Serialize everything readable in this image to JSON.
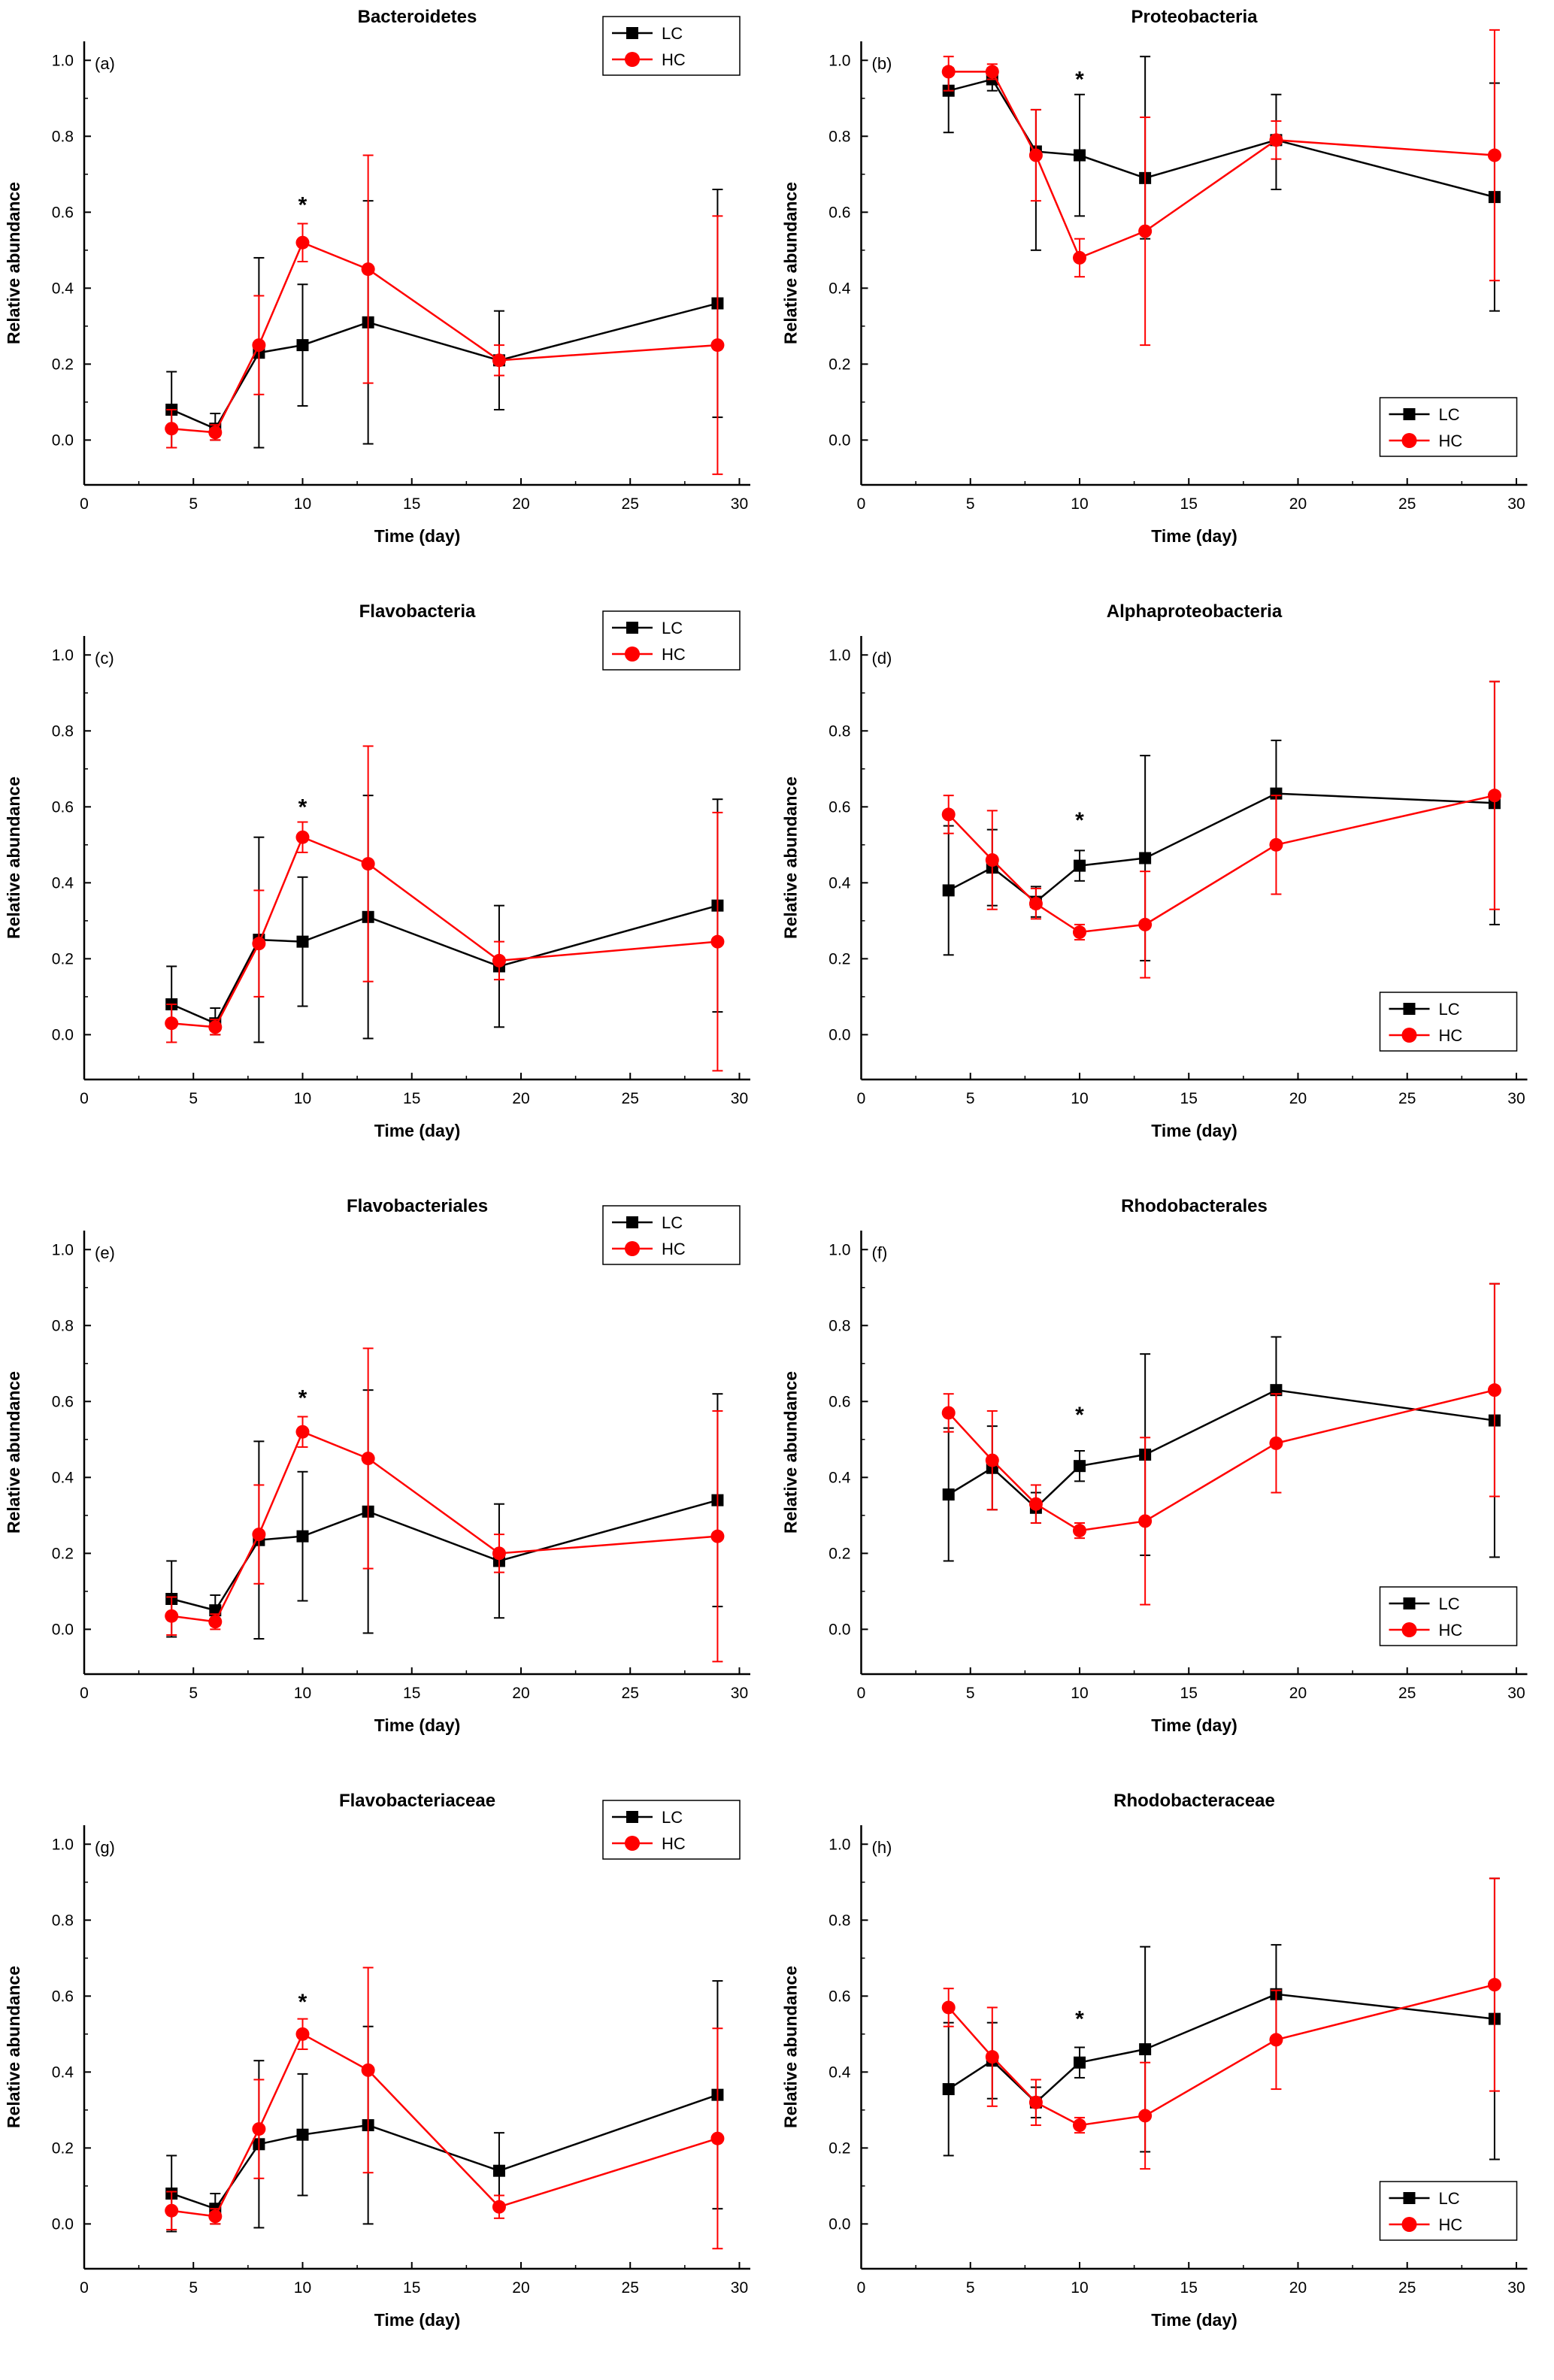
{
  "axes": {
    "xlabel": "Time (day)",
    "ylabel": "Relative abundance",
    "xticks": [
      0,
      5,
      10,
      15,
      20,
      25,
      30
    ],
    "xtick_labels": [
      "0",
      "5",
      "10",
      "15",
      "20",
      "25",
      "30"
    ],
    "yticks": [
      0,
      0.2,
      0.4,
      0.6,
      0.8,
      1.0
    ],
    "ytick_labels": [
      "0.0",
      "0.2",
      "0.4",
      "0.6",
      "0.8",
      "1.0"
    ],
    "xlim": [
      0,
      30.5
    ],
    "ylim": [
      -0.118,
      1.05
    ],
    "x_minor": [
      2.5,
      7.5,
      12.5,
      17.5,
      22.5,
      27.5
    ],
    "y_minor": [
      0.1,
      0.3,
      0.5,
      0.7,
      0.9
    ]
  },
  "legend": {
    "entries": [
      "LC",
      "HC"
    ]
  },
  "colors": {
    "LC": "#000000",
    "HC": "#ff0000"
  },
  "x": [
    4,
    6,
    8,
    10,
    13,
    19,
    29
  ],
  "chart_data": [
    {
      "type": "line",
      "panel": "(a)",
      "title": "Bacteroidetes",
      "legend_pos": "top-right",
      "significance": {
        "x": 10,
        "y": 0.6,
        "symbol": "*"
      },
      "xlabel": "Time (day)",
      "ylabel": "Relative abundance",
      "series": [
        {
          "name": "LC",
          "color": "#000000",
          "marker": "square",
          "y": [
            0.08,
            0.03,
            0.23,
            0.25,
            0.31,
            0.21,
            0.36
          ],
          "err_lo": [
            0.1,
            0.03,
            0.25,
            0.16,
            0.32,
            0.13,
            0.3
          ],
          "err_hi": [
            0.1,
            0.04,
            0.25,
            0.16,
            0.32,
            0.13,
            0.3
          ]
        },
        {
          "name": "HC",
          "color": "#ff0000",
          "marker": "circle",
          "y": [
            0.03,
            0.02,
            0.25,
            0.52,
            0.45,
            0.21,
            0.25
          ],
          "err_lo": [
            0.05,
            0.02,
            0.13,
            0.05,
            0.3,
            0.04,
            0.34
          ],
          "err_hi": [
            0.05,
            0.02,
            0.13,
            0.05,
            0.3,
            0.04,
            0.34
          ]
        }
      ]
    },
    {
      "type": "line",
      "panel": "(b)",
      "title": "Proteobacteria",
      "legend_pos": "bottom-right",
      "significance": {
        "x": 10,
        "y": 0.93,
        "symbol": "*"
      },
      "xlabel": "Time (day)",
      "ylabel": "Relative abundance",
      "series": [
        {
          "name": "LC",
          "color": "#000000",
          "marker": "square",
          "y": [
            0.92,
            0.95,
            0.76,
            0.75,
            0.69,
            0.79,
            0.64
          ],
          "err_lo": [
            0.11,
            0.03,
            0.26,
            0.16,
            0.16,
            0.13,
            0.3
          ],
          "err_hi": [
            0.06,
            0.03,
            0.11,
            0.16,
            0.32,
            0.12,
            0.3
          ]
        },
        {
          "name": "HC",
          "color": "#ff0000",
          "marker": "circle",
          "y": [
            0.97,
            0.97,
            0.75,
            0.48,
            0.55,
            0.79,
            0.75
          ],
          "err_lo": [
            0.05,
            0.02,
            0.12,
            0.05,
            0.3,
            0.05,
            0.33
          ],
          "err_hi": [
            0.04,
            0.02,
            0.12,
            0.05,
            0.3,
            0.05,
            0.33
          ]
        }
      ]
    },
    {
      "type": "line",
      "panel": "(c)",
      "title": "Flavobacteria",
      "legend_pos": "top-right",
      "significance": {
        "x": 10,
        "y": 0.58,
        "symbol": "*"
      },
      "xlabel": "Time (day)",
      "ylabel": "Relative abundance",
      "series": [
        {
          "name": "LC",
          "color": "#000000",
          "marker": "square",
          "y": [
            0.08,
            0.03,
            0.25,
            0.245,
            0.31,
            0.18,
            0.34
          ],
          "err_lo": [
            0.1,
            0.03,
            0.27,
            0.17,
            0.32,
            0.16,
            0.28
          ],
          "err_hi": [
            0.1,
            0.04,
            0.27,
            0.17,
            0.32,
            0.16,
            0.28
          ]
        },
        {
          "name": "HC",
          "color": "#ff0000",
          "marker": "circle",
          "y": [
            0.03,
            0.02,
            0.24,
            0.52,
            0.45,
            0.195,
            0.245
          ],
          "err_lo": [
            0.05,
            0.02,
            0.14,
            0.04,
            0.31,
            0.05,
            0.34
          ],
          "err_hi": [
            0.05,
            0.02,
            0.14,
            0.04,
            0.31,
            0.05,
            0.34
          ]
        }
      ]
    },
    {
      "type": "line",
      "panel": "(d)",
      "title": "Alphaproteobacteria",
      "legend_pos": "bottom-right",
      "significance": {
        "x": 10,
        "y": 0.545,
        "symbol": "*"
      },
      "xlabel": "Time (day)",
      "ylabel": "Relative abundance",
      "series": [
        {
          "name": "LC",
          "color": "#000000",
          "marker": "square",
          "y": [
            0.38,
            0.44,
            0.35,
            0.445,
            0.465,
            0.635,
            0.61
          ],
          "err_lo": [
            0.17,
            0.1,
            0.04,
            0.04,
            0.27,
            0.14,
            0.32
          ],
          "err_hi": [
            0.17,
            0.1,
            0.04,
            0.04,
            0.27,
            0.14,
            0.32
          ]
        },
        {
          "name": "HC",
          "color": "#ff0000",
          "marker": "circle",
          "y": [
            0.58,
            0.46,
            0.345,
            0.27,
            0.29,
            0.5,
            0.63
          ],
          "err_lo": [
            0.05,
            0.13,
            0.04,
            0.02,
            0.14,
            0.13,
            0.3
          ],
          "err_hi": [
            0.05,
            0.13,
            0.04,
            0.02,
            0.14,
            0.13,
            0.3
          ]
        }
      ]
    },
    {
      "type": "line",
      "panel": "(e)",
      "title": "Flavobacteriales",
      "legend_pos": "top-right",
      "significance": {
        "x": 10,
        "y": 0.59,
        "symbol": "*"
      },
      "xlabel": "Time (day)",
      "ylabel": "Relative abundance",
      "series": [
        {
          "name": "LC",
          "color": "#000000",
          "marker": "square",
          "y": [
            0.08,
            0.05,
            0.235,
            0.245,
            0.31,
            0.18,
            0.34
          ],
          "err_lo": [
            0.1,
            0.04,
            0.26,
            0.17,
            0.32,
            0.15,
            0.28
          ],
          "err_hi": [
            0.1,
            0.04,
            0.26,
            0.17,
            0.32,
            0.15,
            0.28
          ]
        },
        {
          "name": "HC",
          "color": "#ff0000",
          "marker": "circle",
          "y": [
            0.035,
            0.02,
            0.25,
            0.52,
            0.45,
            0.2,
            0.245
          ],
          "err_lo": [
            0.05,
            0.02,
            0.13,
            0.04,
            0.29,
            0.05,
            0.33
          ],
          "err_hi": [
            0.05,
            0.02,
            0.13,
            0.04,
            0.29,
            0.05,
            0.33
          ]
        }
      ]
    },
    {
      "type": "line",
      "panel": "(f)",
      "title": "Rhodobacterales",
      "legend_pos": "bottom-right",
      "significance": {
        "x": 10,
        "y": 0.545,
        "symbol": "*"
      },
      "xlabel": "Time (day)",
      "ylabel": "Relative abundance",
      "series": [
        {
          "name": "LC",
          "color": "#000000",
          "marker": "square",
          "y": [
            0.355,
            0.425,
            0.32,
            0.43,
            0.46,
            0.63,
            0.55
          ],
          "err_lo": [
            0.175,
            0.11,
            0.04,
            0.04,
            0.265,
            0.14,
            0.36
          ],
          "err_hi": [
            0.175,
            0.11,
            0.04,
            0.04,
            0.265,
            0.14,
            0.36
          ]
        },
        {
          "name": "HC",
          "color": "#ff0000",
          "marker": "circle",
          "y": [
            0.57,
            0.445,
            0.33,
            0.26,
            0.285,
            0.49,
            0.63
          ],
          "err_lo": [
            0.05,
            0.13,
            0.05,
            0.02,
            0.22,
            0.13,
            0.28
          ],
          "err_hi": [
            0.05,
            0.13,
            0.05,
            0.02,
            0.22,
            0.13,
            0.28
          ]
        }
      ]
    },
    {
      "type": "line",
      "panel": "(g)",
      "title": "Flavobacteriaceae",
      "legend_pos": "top-right",
      "significance": {
        "x": 10,
        "y": 0.565,
        "symbol": "*"
      },
      "xlabel": "Time (day)",
      "ylabel": "Relative abundance",
      "series": [
        {
          "name": "LC",
          "color": "#000000",
          "marker": "square",
          "y": [
            0.08,
            0.04,
            0.21,
            0.235,
            0.26,
            0.14,
            0.34
          ],
          "err_lo": [
            0.1,
            0.04,
            0.22,
            0.16,
            0.26,
            0.1,
            0.3
          ],
          "err_hi": [
            0.1,
            0.04,
            0.22,
            0.16,
            0.26,
            0.1,
            0.3
          ]
        },
        {
          "name": "HC",
          "color": "#ff0000",
          "marker": "circle",
          "y": [
            0.035,
            0.02,
            0.25,
            0.5,
            0.405,
            0.045,
            0.225
          ],
          "err_lo": [
            0.05,
            0.02,
            0.13,
            0.04,
            0.27,
            0.03,
            0.29
          ],
          "err_hi": [
            0.05,
            0.02,
            0.13,
            0.04,
            0.27,
            0.03,
            0.29
          ]
        }
      ]
    },
    {
      "type": "line",
      "panel": "(h)",
      "title": "Rhodobacteraceae",
      "legend_pos": "bottom-right",
      "significance": {
        "x": 10,
        "y": 0.52,
        "symbol": "*"
      },
      "xlabel": "Time (day)",
      "ylabel": "Relative abundance",
      "series": [
        {
          "name": "LC",
          "color": "#000000",
          "marker": "square",
          "y": [
            0.355,
            0.43,
            0.32,
            0.425,
            0.46,
            0.605,
            0.54
          ],
          "err_lo": [
            0.175,
            0.1,
            0.04,
            0.04,
            0.27,
            0.13,
            0.37
          ],
          "err_hi": [
            0.175,
            0.1,
            0.04,
            0.04,
            0.27,
            0.13,
            0.37
          ]
        },
        {
          "name": "HC",
          "color": "#ff0000",
          "marker": "circle",
          "y": [
            0.57,
            0.44,
            0.32,
            0.26,
            0.285,
            0.485,
            0.63
          ],
          "err_lo": [
            0.05,
            0.13,
            0.06,
            0.02,
            0.14,
            0.13,
            0.28
          ],
          "err_hi": [
            0.05,
            0.13,
            0.06,
            0.02,
            0.14,
            0.13,
            0.28
          ]
        }
      ]
    }
  ]
}
